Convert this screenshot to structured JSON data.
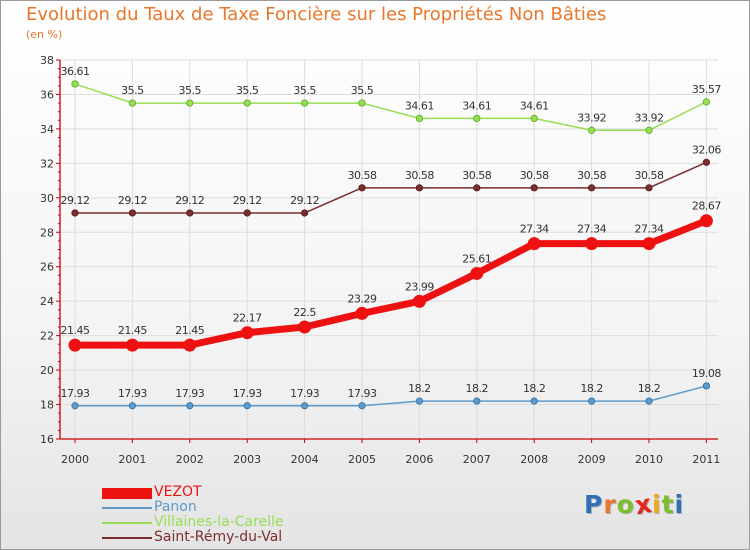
{
  "title": "Evolution du Taux de Taxe Foncière sur les Propriétés Non Bâties",
  "subtitle": "(en %)",
  "logo": {
    "letters": [
      "P",
      "r",
      "o",
      "x",
      "i",
      "t",
      "i"
    ],
    "colors": [
      "#2f6fb5",
      "#e9762a",
      "#7cbf2a",
      "#e4261c",
      "#f0a81c",
      "#7cbf2a",
      "#2f6fb5"
    ]
  },
  "chart_data": {
    "type": "line",
    "title": "Evolution du Taux de Taxe Foncière sur les Propriétés Non Bâties",
    "ylabel": "(en %)",
    "xlabel": "",
    "categories": [
      "2000",
      "2001",
      "2002",
      "2003",
      "2004",
      "2005",
      "2006",
      "2007",
      "2008",
      "2009",
      "2010",
      "2011"
    ],
    "ylim": [
      16,
      38
    ],
    "yticks": [
      "16",
      "18",
      "20",
      "22",
      "24",
      "26",
      "28",
      "30",
      "32",
      "34",
      "36",
      "38"
    ],
    "grid": true,
    "legend_position": "bottom-left",
    "series": [
      {
        "name": "VEZOT",
        "color": "#ee1111",
        "values": [
          21.45,
          21.45,
          21.45,
          22.17,
          22.5,
          23.29,
          23.99,
          25.61,
          27.34,
          27.34,
          27.34,
          28.67
        ],
        "labels": [
          "21.45",
          "21.45",
          "21.45",
          "22.17",
          "22.5",
          "23.29",
          "23.99",
          "25.61",
          "27.34",
          "27.34",
          "27.34",
          "28.67"
        ]
      },
      {
        "name": "Panon",
        "color": "#5d9bcc",
        "values": [
          17.93,
          17.93,
          17.93,
          17.93,
          17.93,
          17.93,
          18.2,
          18.2,
          18.2,
          18.2,
          18.2,
          19.08
        ],
        "labels": [
          "17.93",
          "17.93",
          "17.93",
          "17.93",
          "17.93",
          "17.93",
          "18.2",
          "18.2",
          "18.2",
          "18.2",
          "18.2",
          "19.08"
        ]
      },
      {
        "name": "Villaines-la-Carelle",
        "color": "#99dd55",
        "values": [
          36.61,
          35.5,
          35.5,
          35.5,
          35.5,
          35.5,
          34.61,
          34.61,
          34.61,
          33.92,
          33.92,
          35.57
        ],
        "labels": [
          "36.61",
          "35.5",
          "35.5",
          "35.5",
          "35.5",
          "35.5",
          "34.61",
          "34.61",
          "34.61",
          "33.92",
          "33.92",
          "35.57"
        ]
      },
      {
        "name": "Saint-Rémy-du-Val",
        "color": "#7a2e2e",
        "values": [
          29.12,
          29.12,
          29.12,
          29.12,
          29.12,
          30.58,
          30.58,
          30.58,
          30.58,
          30.58,
          30.58,
          32.06
        ],
        "labels": [
          "29.12",
          "29.12",
          "29.12",
          "29.12",
          "29.12",
          "30.58",
          "30.58",
          "30.58",
          "30.58",
          "30.58",
          "30.58",
          "32.06"
        ]
      }
    ]
  }
}
